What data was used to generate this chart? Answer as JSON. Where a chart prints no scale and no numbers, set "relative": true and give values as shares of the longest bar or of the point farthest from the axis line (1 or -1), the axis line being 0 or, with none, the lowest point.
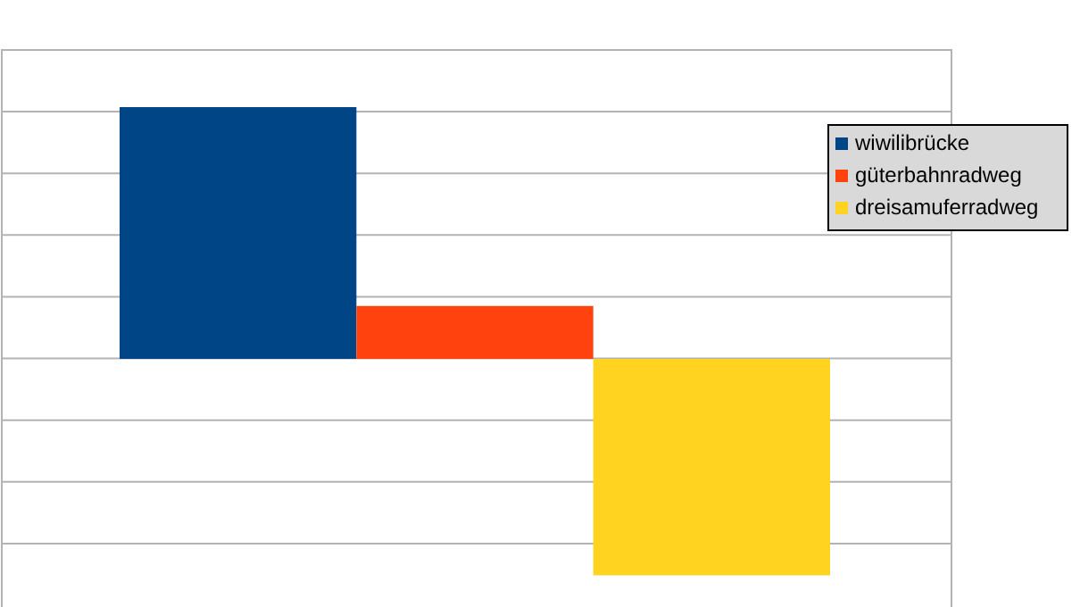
{
  "chart_data": {
    "type": "bar",
    "relative": true,
    "categories": [
      null
    ],
    "grid": true,
    "legend": "right",
    "series": [
      {
        "name": "wiwilibrücke",
        "color": "#004586",
        "values": [
          1
        ]
      },
      {
        "name": "güterbahnradweg",
        "color": "#ff420e",
        "values": [
          0.21
        ]
      },
      {
        "name": "dreisamuferradweg",
        "color": "#ffd320",
        "values": [
          -0.86
        ]
      }
    ]
  }
}
